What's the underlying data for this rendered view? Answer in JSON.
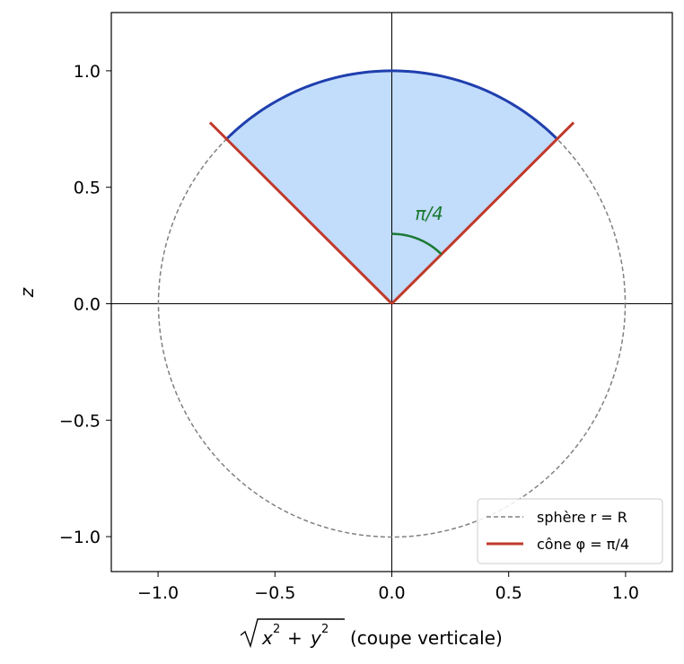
{
  "chart_data": {
    "type": "line",
    "xlabel_suffix": "(coupe verticale)",
    "ylabel": "z",
    "xlim": [
      -1.2,
      1.2
    ],
    "ylim": [
      -1.15,
      1.25
    ],
    "xticks": [
      -1.0,
      -0.5,
      0.0,
      0.5,
      1.0
    ],
    "yticks": [
      -1.0,
      -0.5,
      0.0,
      0.5,
      1.0
    ],
    "xtick_labels": [
      "−1.0",
      "−0.5",
      "0.0",
      "0.5",
      "1.0"
    ],
    "ytick_labels": [
      "−1.0",
      "−0.5",
      "0.0",
      "0.5",
      "1.0"
    ],
    "grid": false,
    "sphere_radius": 1.0,
    "cone_angle_rad": 0.7854,
    "cone_line_length": 1.1,
    "angle_arc_radius": 0.3,
    "annotation": "π/4",
    "annotation_pos": [
      0.16,
      0.36
    ],
    "series": [
      {
        "name": "sphère r = R",
        "style": "dashed",
        "color": "#808080"
      },
      {
        "name": "cône φ = π/4",
        "style": "solid",
        "color": "#c0392b"
      }
    ],
    "cap_color": "#1f3fae",
    "fill_color": "#c2dcfb",
    "arc_color": "#1a7a33",
    "legend_position": "lower-right"
  }
}
